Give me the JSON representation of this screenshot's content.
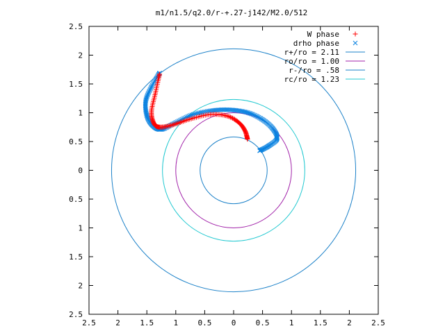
{
  "chart_data": {
    "type": "scatter",
    "title": "m1/n1.5/q2.0/r-+.27-j142/M2.0/512",
    "xlim": [
      -2.5,
      2.5
    ],
    "ylim": [
      -2.5,
      2.5
    ],
    "x_ticks": [
      -2.5,
      -2,
      -1.5,
      -1,
      -0.5,
      0,
      0.5,
      1,
      1.5,
      2,
      2.5
    ],
    "x_tick_labels": [
      "2.5",
      "2",
      "1.5",
      "1",
      "0.5",
      "0",
      "0.5",
      "1",
      "1.5",
      "2",
      "2.5"
    ],
    "y_ticks": [
      2.5,
      2,
      1.5,
      1,
      0.5,
      0,
      -0.5,
      -1,
      -1.5,
      -2,
      -2.5
    ],
    "y_tick_labels": [
      "2.5",
      "2",
      "1.5",
      "1",
      "0.5",
      "0",
      "0.5",
      "1",
      "1.5",
      "2",
      "2.5"
    ],
    "grid": false,
    "legend_position": "top-right",
    "series": [
      {
        "name": "W phase",
        "kind": "points",
        "marker": "plus",
        "color": "#ff0000",
        "anchors": [
          [
            -1.28,
            1.67
          ],
          [
            -1.35,
            1.35
          ],
          [
            -1.42,
            1.02
          ],
          [
            -1.38,
            0.82
          ],
          [
            -1.28,
            0.75
          ],
          [
            -1.05,
            0.79
          ],
          [
            -0.75,
            0.89
          ],
          [
            -0.4,
            0.97
          ],
          [
            -0.1,
            0.94
          ],
          [
            0.1,
            0.82
          ],
          [
            0.2,
            0.68
          ],
          [
            0.24,
            0.54
          ]
        ],
        "count": 130
      },
      {
        "name": "drho phase",
        "kind": "points",
        "marker": "cross",
        "color": "#0a82e0",
        "anchors": [
          [
            -1.28,
            1.69
          ],
          [
            -1.42,
            1.45
          ],
          [
            -1.52,
            1.2
          ],
          [
            -1.5,
            0.95
          ],
          [
            -1.4,
            0.78
          ],
          [
            -1.25,
            0.71
          ],
          [
            -1.0,
            0.83
          ],
          [
            -0.7,
            0.97
          ],
          [
            -0.35,
            1.04
          ],
          [
            -0.05,
            1.05
          ],
          [
            0.25,
            1.0
          ],
          [
            0.5,
            0.88
          ],
          [
            0.68,
            0.72
          ],
          [
            0.75,
            0.55
          ],
          [
            0.6,
            0.42
          ],
          [
            0.45,
            0.34
          ]
        ],
        "count": 200
      },
      {
        "name": "r+/ro = 2.11",
        "kind": "circle",
        "radius": 2.11,
        "color": "#1a80c8"
      },
      {
        "name": "ro/ro = 1.00",
        "kind": "circle",
        "radius": 1.0,
        "color": "#a020a8"
      },
      {
        "name": "r-/ro = .58",
        "kind": "circle",
        "radius": 0.58,
        "color": "#1a80c8"
      },
      {
        "name": "rc/ro = 1.23",
        "kind": "circle",
        "radius": 1.23,
        "color": "#20c8d0"
      }
    ]
  }
}
